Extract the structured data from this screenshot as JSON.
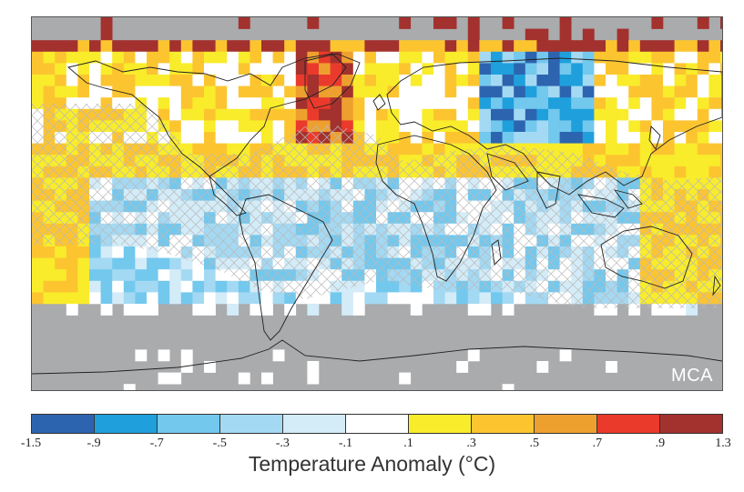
{
  "map": {
    "panel_label": "MCA",
    "background_color": "#a9abad",
    "coastline_color": "#222222",
    "hatch_color": "#b9b9b9"
  },
  "legend": {
    "title": "Temperature Anomaly (°C)",
    "ticks": [
      "-1.5",
      "-.9",
      "-.7",
      "-.5",
      "-.3",
      "-.1",
      ".1",
      ".3",
      ".5",
      ".7",
      ".9",
      "1.3"
    ],
    "colors": [
      "#2d64b0",
      "#1fa0dc",
      "#73c8ee",
      "#a4d9f3",
      "#d3ecf8",
      "#ffffff",
      "#f9ec2b",
      "#fcc530",
      "#eea02f",
      "#ea3a2c",
      "#a3312d"
    ]
  }
}
